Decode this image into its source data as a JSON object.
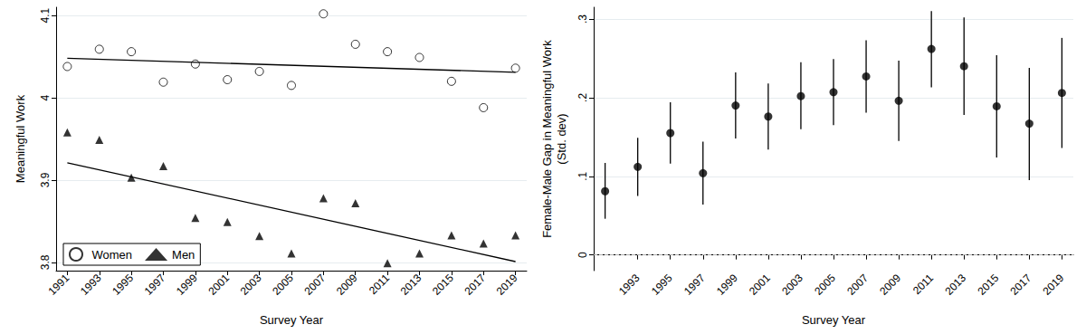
{
  "chart_data": [
    {
      "type": "scatter",
      "xlabel": "Survey Year",
      "ylabel": "Meaningful Work",
      "xlim": [
        1990.3,
        2019.7
      ],
      "xticks": [
        1991,
        1993,
        1995,
        1997,
        1999,
        2001,
        2003,
        2005,
        2007,
        2009,
        2011,
        2013,
        2015,
        2017,
        2019
      ],
      "ylim": [
        3.79,
        4.11
      ],
      "yticks": [
        3.8,
        3.9,
        4,
        4.1
      ],
      "grid": true,
      "legend": "lower left",
      "series": [
        {
          "name": "Women",
          "color": "#000000",
          "marker": "circle-open",
          "x": [
            1991,
            1993,
            1995,
            1997,
            1999,
            2001,
            2003,
            2005,
            2007,
            2009,
            2011,
            2013,
            2015,
            2017,
            2019
          ],
          "values": [
            4.038,
            4.059,
            4.056,
            4.019,
            4.041,
            4.022,
            4.032,
            4.015,
            4.102,
            4.065,
            4.056,
            4.049,
            4.02,
            3.988,
            4.036
          ]
        },
        {
          "name": "Men",
          "color": "#000000",
          "marker": "triangle",
          "x": [
            1991,
            1993,
            1995,
            1997,
            1999,
            2001,
            2003,
            2005,
            2007,
            2009,
            2011,
            2013,
            2015,
            2017,
            2019
          ],
          "values": [
            3.958,
            3.949,
            3.903,
            3.917,
            3.854,
            3.849,
            3.832,
            3.811,
            3.878,
            3.872,
            3.799,
            3.811,
            3.833,
            3.823,
            3.833
          ]
        },
        {
          "type": "line",
          "color": "#000000",
          "line_style": "solid",
          "x": [
            1991,
            2019
          ],
          "values": [
            4.048,
            4.031
          ]
        },
        {
          "type": "line",
          "color": "#000000",
          "line_style": "solid",
          "x": [
            1991,
            2019
          ],
          "values": [
            3.921,
            3.801
          ]
        }
      ]
    },
    {
      "type": "scatter",
      "xlabel": "Survey Year",
      "ylabel": "Female-Male Gap in Meaningful Work\n(Std. dev)",
      "xlim": [
        1990.3,
        2019.7
      ],
      "xticks": [
        1993,
        1995,
        1997,
        1999,
        2001,
        2003,
        2005,
        2007,
        2009,
        2011,
        2013,
        2015,
        2017,
        2019
      ],
      "ylim": [
        -0.02,
        0.315
      ],
      "yticks": [
        0,
        {
          "value": 0.1,
          "label": ".1"
        },
        {
          "value": 0.2,
          "label": ".2"
        },
        {
          "value": 0.3,
          "label": ".3"
        }
      ],
      "grid": true,
      "hline": 0,
      "color": "#000000",
      "marker": "circle",
      "x": [
        1991,
        1993,
        1995,
        1997,
        1999,
        2001,
        2003,
        2005,
        2007,
        2009,
        2011,
        2013,
        2015,
        2017,
        2019
      ],
      "values": [
        0.081,
        0.112,
        0.155,
        0.104,
        0.19,
        0.176,
        0.202,
        0.207,
        0.227,
        0.196,
        0.262,
        0.24,
        0.189,
        0.167,
        0.206
      ],
      "ci_low": [
        0.046,
        0.075,
        0.116,
        0.064,
        0.148,
        0.134,
        0.16,
        0.165,
        0.181,
        0.145,
        0.213,
        0.178,
        0.124,
        0.095,
        0.136
      ],
      "ci_high": [
        0.117,
        0.149,
        0.194,
        0.144,
        0.232,
        0.218,
        0.245,
        0.249,
        0.273,
        0.247,
        0.31,
        0.302,
        0.254,
        0.238,
        0.276
      ]
    }
  ]
}
